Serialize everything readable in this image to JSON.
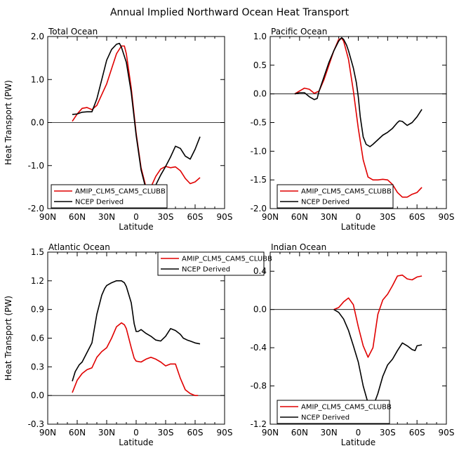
{
  "figure_title": "Annual Implied Northward Ocean Heat Transport",
  "colors": {
    "model": "#e00000",
    "obs": "#000000"
  },
  "chart_data": [
    {
      "type": "line",
      "panel_title": "Total Ocean",
      "xlabel": "Latitude",
      "ylabel": "Heat Transport (PW)",
      "x_unit": "degrees latitude (positive = N)",
      "xlim": [
        90,
        -90
      ],
      "ylim": [
        -2.0,
        2.0
      ],
      "x_ticks": [
        90,
        60,
        30,
        0,
        -30,
        -60,
        -90
      ],
      "x_tick_labels": [
        "90N",
        "60N",
        "30N",
        "0",
        "30S",
        "60S",
        "90S"
      ],
      "y_ticks": [
        -2.0,
        -1.0,
        0.0,
        1.0,
        2.0
      ],
      "y_tick_labels": [
        "-2.0",
        "-1.0",
        "0.0",
        "1.0",
        "2.0"
      ],
      "legend": {
        "position": "bottom-left",
        "entries": [
          "AMIP_CLM5_CAM5_CLUBB",
          "NCEP Derived"
        ]
      },
      "series": [
        {
          "name": "AMIP_CLM5_CAM5_CLUBB",
          "color": "#e00000",
          "x": [
            65,
            60,
            55,
            50,
            45,
            40,
            35,
            30,
            25,
            20,
            15,
            12,
            10,
            5,
            0,
            -5,
            -10,
            -12,
            -15,
            -20,
            -25,
            -30,
            -35,
            -40,
            -45,
            -50,
            -55,
            -60,
            -65
          ],
          "y": [
            0.03,
            0.2,
            0.33,
            0.35,
            0.3,
            0.4,
            0.65,
            0.9,
            1.25,
            1.6,
            1.78,
            1.78,
            1.6,
            0.8,
            -0.25,
            -1.05,
            -1.5,
            -1.58,
            -1.5,
            -1.25,
            -1.08,
            -1.02,
            -1.05,
            -1.03,
            -1.12,
            -1.3,
            -1.42,
            -1.38,
            -1.28
          ]
        },
        {
          "name": "NCEP Derived",
          "color": "#000000",
          "x": [
            65,
            60,
            55,
            50,
            45,
            40,
            35,
            30,
            25,
            20,
            17,
            15,
            10,
            5,
            0,
            -5,
            -10,
            -12,
            -15,
            -20,
            -25,
            -30,
            -35,
            -40,
            -45,
            -50,
            -55,
            -60,
            -65
          ],
          "y": [
            0.19,
            0.2,
            0.24,
            0.25,
            0.25,
            0.55,
            1.0,
            1.45,
            1.7,
            1.82,
            1.84,
            1.75,
            1.4,
            0.7,
            -0.3,
            -1.1,
            -1.55,
            -1.65,
            -1.62,
            -1.45,
            -1.22,
            -1.02,
            -0.8,
            -0.55,
            -0.6,
            -0.78,
            -0.85,
            -0.62,
            -0.33
          ]
        }
      ]
    },
    {
      "type": "line",
      "panel_title": "Pacific Ocean",
      "xlabel": "Latitude",
      "ylabel": "",
      "x_unit": "degrees latitude (positive = N)",
      "xlim": [
        90,
        -90
      ],
      "ylim": [
        -2.0,
        1.0
      ],
      "x_ticks": [
        90,
        60,
        30,
        0,
        -30,
        -60,
        -90
      ],
      "x_tick_labels": [
        "90N",
        "60N",
        "30N",
        "0",
        "30S",
        "60S",
        "90S"
      ],
      "y_ticks": [
        -2.0,
        -1.5,
        -1.0,
        -0.5,
        0.0,
        0.5,
        1.0
      ],
      "y_tick_labels": [
        "-2.0",
        "-1.5",
        "-1.0",
        "-0.5",
        "0.0",
        "0.5",
        "1.0"
      ],
      "legend": {
        "position": "bottom-left",
        "entries": [
          "AMIP_CLM5_CAM5_CLUBB",
          "NCEP Derived"
        ]
      },
      "series": [
        {
          "name": "AMIP_CLM5_CAM5_CLUBB",
          "color": "#e00000",
          "x": [
            65,
            60,
            55,
            50,
            45,
            40,
            35,
            30,
            25,
            20,
            17,
            15,
            10,
            5,
            0,
            -5,
            -10,
            -15,
            -20,
            -25,
            -30,
            -35,
            -40,
            -45,
            -50,
            -55,
            -60,
            -65
          ],
          "y": [
            0.0,
            0.05,
            0.1,
            0.08,
            0.01,
            0.05,
            0.25,
            0.5,
            0.75,
            0.95,
            0.97,
            0.92,
            0.6,
            0.05,
            -0.6,
            -1.15,
            -1.45,
            -1.5,
            -1.5,
            -1.49,
            -1.5,
            -1.58,
            -1.72,
            -1.8,
            -1.8,
            -1.75,
            -1.72,
            -1.63
          ]
        },
        {
          "name": "NCEP Derived",
          "color": "#000000",
          "x": [
            65,
            60,
            55,
            50,
            45,
            42,
            40,
            35,
            30,
            25,
            20,
            17,
            15,
            12,
            10,
            5,
            2,
            0,
            -2,
            -5,
            -8,
            -12,
            -15,
            -20,
            -25,
            -30,
            -35,
            -40,
            -42,
            -45,
            -50,
            -55,
            -60,
            -65
          ],
          "y": [
            0.0,
            0.02,
            0.02,
            -0.05,
            -0.1,
            -0.08,
            0.05,
            0.3,
            0.55,
            0.75,
            0.92,
            0.98,
            0.95,
            0.85,
            0.75,
            0.45,
            0.2,
            -0.05,
            -0.4,
            -0.75,
            -0.88,
            -0.92,
            -0.88,
            -0.8,
            -0.72,
            -0.67,
            -0.6,
            -0.5,
            -0.47,
            -0.48,
            -0.55,
            -0.5,
            -0.4,
            -0.27
          ]
        }
      ]
    },
    {
      "type": "line",
      "panel_title": "Atlantic Ocean",
      "xlabel": "Latitude",
      "ylabel": "Heat Transport (PW)",
      "x_unit": "degrees latitude (positive = N)",
      "xlim": [
        90,
        -90
      ],
      "ylim": [
        -0.3,
        1.5
      ],
      "x_ticks": [
        90,
        60,
        30,
        0,
        -30,
        -60,
        -90
      ],
      "x_tick_labels": [
        "90N",
        "60N",
        "30N",
        "0",
        "30S",
        "60S",
        "90S"
      ],
      "y_ticks": [
        -0.3,
        0.0,
        0.3,
        0.6,
        0.9,
        1.2,
        1.5
      ],
      "y_tick_labels": [
        "-0.3",
        "0.0",
        "0.3",
        "0.6",
        "0.9",
        "1.2",
        "1.5"
      ],
      "legend": {
        "position": "top-right",
        "entries": [
          "AMIP_CLM5_CAM5_CLUBB",
          "NCEP Derived"
        ]
      },
      "series": [
        {
          "name": "AMIP_CLM5_CAM5_CLUBB",
          "color": "#e00000",
          "x": [
            65,
            60,
            55,
            50,
            45,
            40,
            35,
            30,
            25,
            20,
            15,
            12,
            10,
            5,
            2,
            0,
            -5,
            -10,
            -15,
            -20,
            -25,
            -30,
            -35,
            -40,
            -45,
            -50,
            -55,
            -60,
            -63
          ],
          "y": [
            0.03,
            0.16,
            0.23,
            0.27,
            0.29,
            0.4,
            0.46,
            0.5,
            0.6,
            0.72,
            0.76,
            0.74,
            0.7,
            0.5,
            0.39,
            0.36,
            0.35,
            0.38,
            0.4,
            0.38,
            0.35,
            0.31,
            0.33,
            0.33,
            0.18,
            0.06,
            0.02,
            0.0,
            0.0
          ]
        },
        {
          "name": "NCEP Derived",
          "color": "#000000",
          "x": [
            65,
            62,
            58,
            55,
            50,
            45,
            40,
            35,
            32,
            30,
            25,
            20,
            15,
            12,
            10,
            5,
            2,
            0,
            -2,
            -5,
            -10,
            -15,
            -20,
            -25,
            -30,
            -35,
            -40,
            -45,
            -48,
            -52,
            -55,
            -60,
            -65
          ],
          "y": [
            0.15,
            0.25,
            0.32,
            0.35,
            0.45,
            0.55,
            0.85,
            1.05,
            1.12,
            1.15,
            1.18,
            1.2,
            1.2,
            1.18,
            1.14,
            0.97,
            0.75,
            0.67,
            0.67,
            0.69,
            0.65,
            0.62,
            0.58,
            0.57,
            0.62,
            0.7,
            0.68,
            0.64,
            0.6,
            0.58,
            0.57,
            0.55,
            0.54
          ]
        }
      ]
    },
    {
      "type": "line",
      "panel_title": "Indian Ocean",
      "xlabel": "Latitude",
      "ylabel": "",
      "x_unit": "degrees latitude (positive = N)",
      "xlim": [
        90,
        -90
      ],
      "ylim": [
        -1.2,
        0.6
      ],
      "x_ticks": [
        90,
        60,
        30,
        0,
        -30,
        -60,
        -90
      ],
      "x_tick_labels": [
        "90N",
        "60N",
        "30N",
        "0",
        "30S",
        "60S",
        "90S"
      ],
      "y_ticks": [
        -1.2,
        -0.8,
        -0.4,
        0.0,
        0.4
      ],
      "y_tick_labels": [
        "-1.2",
        "-0.8",
        "-0.4",
        "0.0",
        "0.4"
      ],
      "legend": {
        "position": "bottom-left",
        "entries": [
          "AMIP_CLM5_CAM5_CLUBB",
          "NCEP Derived"
        ]
      },
      "series": [
        {
          "name": "AMIP_CLM5_CAM5_CLUBB",
          "color": "#e00000",
          "x": [
            25,
            20,
            15,
            10,
            5,
            0,
            -5,
            -10,
            -15,
            -20,
            -25,
            -30,
            -35,
            -40,
            -45,
            -50,
            -55,
            -60,
            -65
          ],
          "y": [
            0.0,
            0.02,
            0.08,
            0.12,
            0.05,
            -0.18,
            -0.38,
            -0.5,
            -0.4,
            -0.05,
            0.1,
            0.16,
            0.25,
            0.35,
            0.36,
            0.32,
            0.31,
            0.34,
            0.35
          ]
        },
        {
          "name": "NCEP Derived",
          "color": "#000000",
          "x": [
            25,
            20,
            15,
            10,
            5,
            0,
            -5,
            -10,
            -12,
            -15,
            -20,
            -25,
            -30,
            -35,
            -40,
            -45,
            -50,
            -55,
            -58,
            -60,
            -65
          ],
          "y": [
            0.0,
            -0.03,
            -0.1,
            -0.22,
            -0.38,
            -0.55,
            -0.8,
            -0.98,
            -1.04,
            -1.02,
            -0.88,
            -0.7,
            -0.58,
            -0.52,
            -0.43,
            -0.35,
            -0.38,
            -0.42,
            -0.43,
            -0.38,
            -0.37
          ]
        }
      ]
    }
  ]
}
